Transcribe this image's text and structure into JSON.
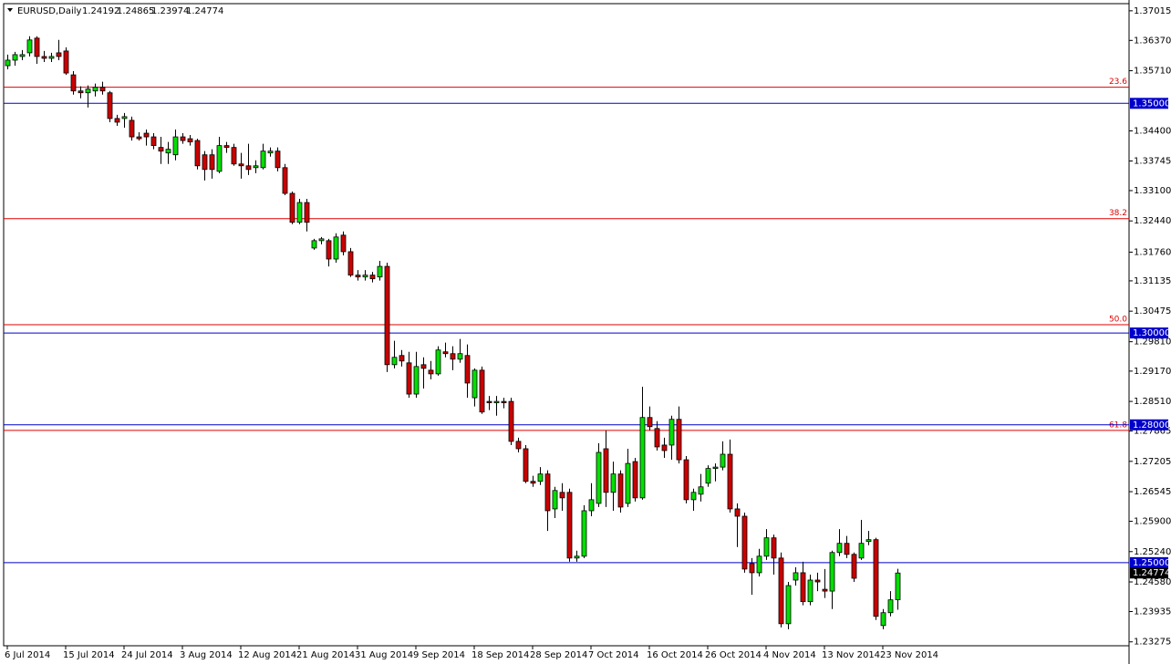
{
  "chart_data": {
    "type": "candlestick",
    "title": "EURUSD,Daily",
    "categories": [
      "6 Jul 2014",
      null,
      null,
      null,
      null,
      null,
      null,
      null,
      "15 Jul 2014",
      null,
      null,
      null,
      null,
      null,
      null,
      null,
      "24 Jul 2014",
      null,
      null,
      null,
      null,
      null,
      null,
      null,
      "3 Aug 2014",
      null,
      null,
      null,
      null,
      null,
      null,
      null,
      "12 Aug 2014",
      null,
      null,
      null,
      null,
      null,
      null,
      null,
      "21 Aug 2014",
      null,
      null,
      null,
      null,
      null,
      null,
      null,
      "31 Aug 2014",
      null,
      null,
      null,
      null,
      null,
      null,
      null,
      "9 Sep 2014",
      null,
      null,
      null,
      null,
      null,
      null,
      null,
      "18 Sep 2014",
      null,
      null,
      null,
      null,
      null,
      null,
      null,
      "28 Sep 2014",
      null,
      null,
      null,
      null,
      null,
      null,
      null,
      "7 Oct 2014",
      null,
      null,
      null,
      null,
      null,
      null,
      null,
      "16 Oct 2014",
      null,
      null,
      null,
      null,
      null,
      null,
      null,
      "26 Oct 2014",
      null,
      null,
      null,
      null,
      null,
      null,
      null,
      "4 Nov 2014",
      null,
      null,
      null,
      null,
      null,
      null,
      null,
      "13 Nov 2014",
      null,
      null,
      null,
      null,
      null,
      null,
      null,
      "23 Nov 2014",
      null,
      null
    ],
    "open": [
      1.3582,
      1.3594,
      1.3602,
      1.361,
      1.3642,
      1.3602,
      1.3598,
      1.361,
      1.3614,
      1.3562,
      1.3527,
      1.3523,
      1.3527,
      1.3535,
      1.3523,
      1.3467,
      1.3467,
      1.3463,
      1.3427,
      1.3435,
      1.3427,
      1.3404,
      1.3392,
      1.3388,
      1.3427,
      1.3423,
      1.3419,
      1.3388,
      1.3388,
      1.3352,
      1.3408,
      1.3404,
      1.3368,
      1.3364,
      1.336,
      1.336,
      1.3392,
      1.3396,
      1.336,
      1.3304,
      1.3241,
      1.3284,
      1.3185,
      1.3201,
      1.3201,
      1.3161,
      1.3213,
      1.3177,
      1.3126,
      1.3122,
      1.3126,
      1.3122,
      1.3145,
      1.2931,
      1.2951,
      1.2935,
      1.2867,
      1.2931,
      1.2919,
      1.2911,
      1.2959,
      1.2955,
      1.2943,
      1.2951,
      1.2859,
      1.2919,
      1.2851,
      1.2848,
      1.2851,
      1.2851,
      1.2764,
      1.2748,
      1.2677,
      1.2677,
      1.2693,
      1.2617,
      1.2653,
      1.2653,
      1.251,
      1.2514,
      1.2613,
      1.2629,
      1.2748,
      1.2653,
      1.2693,
      1.2629,
      1.272,
      1.2641,
      1.2816,
      1.2792,
      1.2756,
      1.2756,
      1.2812,
      1.2724,
      1.2637,
      1.2649,
      1.2673,
      1.2705,
      1.2708,
      1.2736,
      1.2617,
      1.2601,
      1.2498,
      1.2478,
      1.2514,
      1.2554,
      1.251,
      1.2367,
      1.2462,
      1.2478,
      1.2415,
      1.2462,
      1.2442,
      1.2438,
      1.2522,
      1.2542,
      1.2518,
      1.251,
      1.2546,
      1.255,
      1.2363,
      1.2391,
      1.24192
    ],
    "high": [
      1.3606,
      1.3612,
      1.3616,
      1.3646,
      1.3646,
      1.3614,
      1.361,
      1.3638,
      1.3622,
      1.357,
      1.3537,
      1.3539,
      1.3543,
      1.3547,
      1.3527,
      1.3475,
      1.3479,
      1.3471,
      1.3437,
      1.3443,
      1.3435,
      1.3427,
      1.3416,
      1.3443,
      1.3435,
      1.3431,
      1.3423,
      1.3396,
      1.34,
      1.3427,
      1.3416,
      1.3412,
      1.3392,
      1.3412,
      1.3376,
      1.3412,
      1.3404,
      1.3404,
      1.3368,
      1.3308,
      1.3292,
      1.3292,
      1.3205,
      1.3209,
      1.3205,
      1.3217,
      1.3221,
      1.3185,
      1.3137,
      1.3137,
      1.3133,
      1.3157,
      1.3153,
      1.2983,
      1.2963,
      1.2959,
      1.2959,
      1.2947,
      1.2939,
      1.2971,
      1.2979,
      1.2971,
      1.2987,
      1.2975,
      1.2923,
      1.2927,
      1.2863,
      1.2863,
      1.2859,
      1.2859,
      1.2772,
      1.2756,
      1.2689,
      1.2708,
      1.2701,
      1.2665,
      1.2673,
      1.2661,
      1.2526,
      1.2625,
      1.2673,
      1.276,
      1.2788,
      1.272,
      1.2701,
      1.2748,
      1.2728,
      1.2883,
      1.284,
      1.2808,
      1.2772,
      1.282,
      1.284,
      1.2732,
      1.2661,
      1.2693,
      1.2712,
      1.2716,
      1.2764,
      1.2768,
      1.2629,
      1.2609,
      1.251,
      1.253,
      1.2573,
      1.2561,
      1.2522,
      1.2458,
      1.249,
      1.2502,
      1.2474,
      1.2478,
      1.2486,
      1.2526,
      1.2573,
      1.2558,
      1.2522,
      1.2593,
      1.2569,
      1.2554,
      1.2399,
      1.2438,
      1.24865
    ],
    "low": [
      1.3574,
      1.3582,
      1.3594,
      1.3602,
      1.3586,
      1.359,
      1.359,
      1.3594,
      1.3562,
      1.3519,
      1.3511,
      1.3491,
      1.3515,
      1.3519,
      1.3459,
      1.3451,
      1.3447,
      1.3419,
      1.3419,
      1.3408,
      1.34,
      1.3368,
      1.3368,
      1.3376,
      1.3412,
      1.3408,
      1.3356,
      1.3332,
      1.3336,
      1.3348,
      1.3392,
      1.3364,
      1.3336,
      1.3344,
      1.3348,
      1.3356,
      1.3384,
      1.3352,
      1.33,
      1.3237,
      1.3237,
      1.3221,
      1.3181,
      1.3193,
      1.3145,
      1.3153,
      1.3169,
      1.3122,
      1.3114,
      1.3114,
      1.311,
      1.3114,
      1.2915,
      1.2923,
      1.2927,
      1.2859,
      1.2859,
      1.2879,
      1.2899,
      1.2907,
      1.2947,
      1.2919,
      1.2935,
      1.2859,
      1.284,
      1.2824,
      1.2832,
      1.282,
      1.2836,
      1.2756,
      1.274,
      1.2673,
      1.2665,
      1.2669,
      1.2569,
      1.2597,
      1.2613,
      1.2502,
      1.2502,
      1.251,
      1.2601,
      1.2621,
      1.2621,
      1.2613,
      1.2609,
      1.2621,
      1.2633,
      1.2637,
      1.2788,
      1.2744,
      1.2728,
      1.2724,
      1.2716,
      1.2629,
      1.2613,
      1.2633,
      1.2665,
      1.2677,
      1.2701,
      1.2609,
      1.2534,
      1.2478,
      1.243,
      1.247,
      1.2506,
      1.2474,
      1.2359,
      1.2355,
      1.245,
      1.2407,
      1.2407,
      1.2438,
      1.2423,
      1.2399,
      1.2514,
      1.251,
      1.2458,
      1.2506,
      1.2538,
      1.2375,
      1.2355,
      1.2383,
      1.23974
    ],
    "close": [
      1.3594,
      1.3606,
      1.3606,
      1.3638,
      1.3602,
      1.3598,
      1.3602,
      1.3602,
      1.3566,
      1.3527,
      1.3523,
      1.3531,
      1.3535,
      1.3527,
      1.3467,
      1.3459,
      1.3471,
      1.3427,
      1.3423,
      1.3427,
      1.3408,
      1.3396,
      1.34,
      1.3427,
      1.3419,
      1.3416,
      1.3364,
      1.3356,
      1.3356,
      1.3408,
      1.3404,
      1.3368,
      1.3364,
      1.3356,
      1.3364,
      1.3396,
      1.3396,
      1.336,
      1.3304,
      1.3241,
      1.3284,
      1.3241,
      1.3201,
      1.3205,
      1.3161,
      1.3209,
      1.3177,
      1.3126,
      1.3122,
      1.3126,
      1.3118,
      1.3145,
      1.2931,
      1.2947,
      1.2939,
      1.2867,
      1.2927,
      1.2923,
      1.2911,
      1.2963,
      1.2955,
      1.2943,
      1.2955,
      1.2891,
      1.2919,
      1.2828,
      1.2848,
      1.2851,
      1.2848,
      1.2764,
      1.2748,
      1.2677,
      1.2673,
      1.2693,
      1.2613,
      1.2657,
      1.2641,
      1.251,
      1.2514,
      1.2613,
      1.2637,
      1.274,
      1.2653,
      1.2693,
      1.2621,
      1.2716,
      1.2641,
      1.2816,
      1.2796,
      1.2752,
      1.2744,
      1.2812,
      1.2724,
      1.2637,
      1.2653,
      1.2665,
      1.2705,
      1.2708,
      1.2736,
      1.2617,
      1.2601,
      1.2486,
      1.2478,
      1.2514,
      1.2554,
      1.251,
      1.2367,
      1.245,
      1.2478,
      1.2415,
      1.2462,
      1.2458,
      1.2438,
      1.2522,
      1.2542,
      1.2518,
      1.2466,
      1.2542,
      1.255,
      1.2383,
      1.2391,
      1.2419,
      1.24774
    ],
    "up_color": "#00e000",
    "down_color": "#cc0000",
    "ylim": [
      1.2319,
      1.3725
    ],
    "yticks": [
      1.37015,
      {
        "value": 1.3637,
        "label": "1.36370"
      },
      {
        "value": 1.3571,
        "label": "1.35710"
      },
      {
        "value": 1.344,
        "label": "1.34400"
      },
      1.33745,
      {
        "value": 1.331,
        "label": "1.33100"
      },
      {
        "value": 1.3244,
        "label": "1.32440"
      },
      {
        "value": 1.3176,
        "label": "1.31760"
      },
      1.31135,
      1.30475,
      {
        "value": 1.2981,
        "label": "1.29810"
      },
      {
        "value": 1.2917,
        "label": "1.29170"
      },
      {
        "value": 1.2851,
        "label": "1.28510"
      },
      1.27865,
      1.27205,
      1.26545,
      {
        "value": 1.259,
        "label": "1.25900"
      },
      {
        "value": 1.2524,
        "label": "1.25240"
      },
      {
        "value": 1.2458,
        "label": "1.24580"
      },
      1.23935,
      1.23275
    ],
    "levels": [
      {
        "value": 1.35,
        "label": "1.35000",
        "color": "#0000cc"
      },
      {
        "value": 1.3,
        "label": "1.30000",
        "color": "#0000cc"
      },
      {
        "value": 1.28,
        "label": "1.28000",
        "color": "#0000cc"
      },
      {
        "value": 1.25,
        "label": "1.25000",
        "color": "#0000cc"
      }
    ],
    "fib_levels": [
      {
        "value": 1.3535,
        "label": "23.6",
        "color": "#e00000"
      },
      {
        "value": 1.3249,
        "label": "38.2",
        "color": "#e00000"
      },
      {
        "value": 1.3018,
        "label": "50.0",
        "color": "#e00000"
      },
      {
        "value": 1.2788,
        "label": "61.8",
        "color": "#e00000"
      }
    ]
  }
}
